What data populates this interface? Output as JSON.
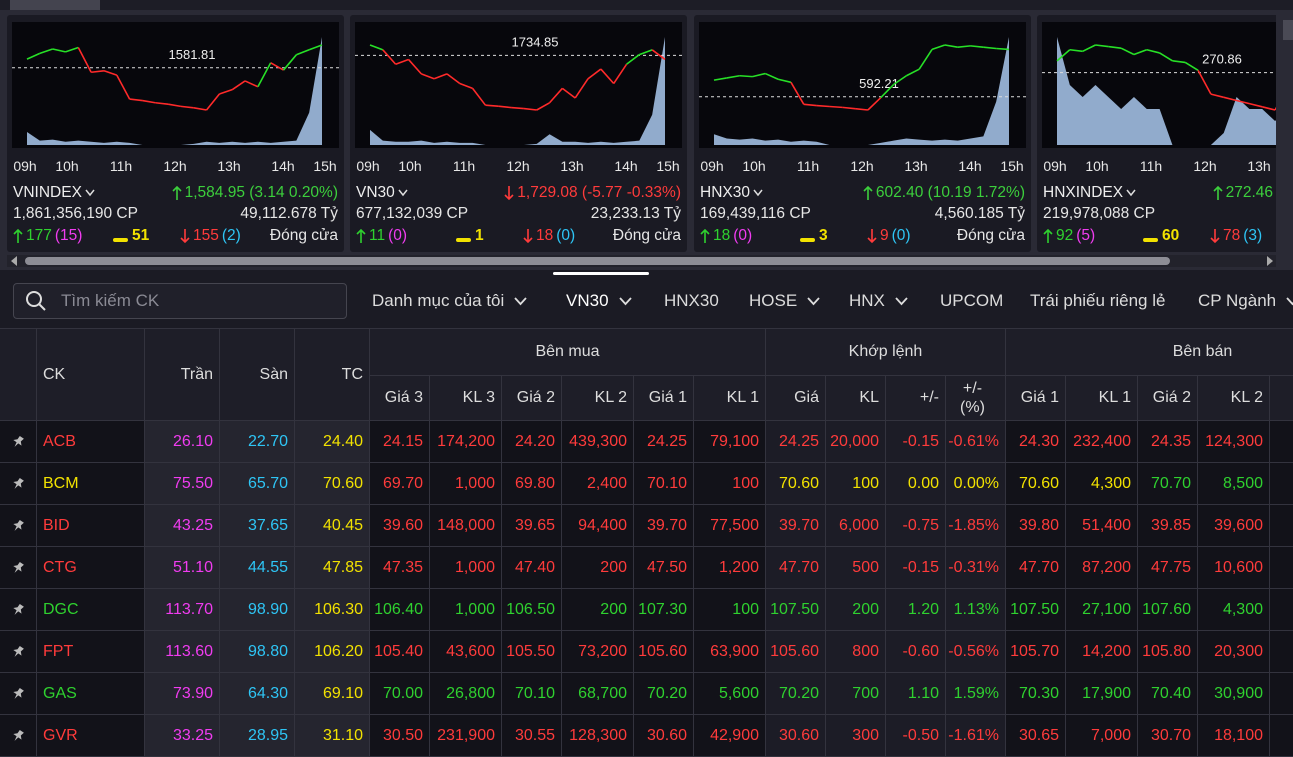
{
  "index_cards": [
    {
      "name": "VNINDEX",
      "ref": 1581.81,
      "times": [
        "09h",
        "10h",
        "11h",
        "12h",
        "13h",
        "14h",
        "15h"
      ],
      "line": [
        1583.0,
        1583.8,
        1584.4,
        1584.0,
        1584.6,
        1581.2,
        1581.4,
        1580.8,
        1577.5,
        1577.3,
        1577.0,
        1576.8,
        1576.5,
        1576.3,
        1576.0,
        1578.2,
        1578.8,
        1580.0,
        1579.2,
        1582.5,
        1581.5,
        1583.6,
        1584.3,
        1584.95
      ],
      "volume": [
        12,
        4,
        5,
        3,
        4,
        3,
        2,
        3,
        2,
        0,
        0,
        0,
        0,
        1,
        3,
        2,
        3,
        2,
        3,
        2,
        3,
        4,
        30,
        100
      ],
      "change": "1,584.95 (3.14 0.20%)",
      "change_color": "#3ccf3c",
      "volume_text": "1,861,356,190 CP",
      "value_text": "49,112.678 Tỷ",
      "advances": 177,
      "ceiling": "(15)",
      "unchanged": 51,
      "declines": 155,
      "floor": "(2)",
      "status": "Đóng cửa"
    },
    {
      "name": "VN30",
      "ref": 1734.85,
      "times": [
        "09h",
        "10h",
        "11h",
        "12h",
        "13h",
        "14h",
        "15h"
      ],
      "line": [
        1737.0,
        1736.0,
        1733.0,
        1734.0,
        1731.0,
        1730.0,
        1731.0,
        1729.0,
        1728.0,
        1724.5,
        1724.3,
        1724.0,
        1723.8,
        1723.5,
        1725.0,
        1728.0,
        1726.0,
        1730.0,
        1732.0,
        1729.0,
        1733.0,
        1735.0,
        1736.0,
        1734.0
      ],
      "volume": [
        14,
        4,
        3,
        3,
        4,
        2,
        3,
        2,
        2,
        0,
        0,
        0,
        0,
        1,
        10,
        3,
        3,
        2,
        3,
        2,
        3,
        4,
        28,
        100
      ],
      "change": "1,729.08 (-5.77 -0.33%)",
      "change_color": "#ff3b3b",
      "volume_text": "677,132,039 CP",
      "value_text": "23,233.13 Tỷ",
      "advances": 11,
      "ceiling": "(0)",
      "unchanged": 1,
      "declines": 18,
      "floor": "(0)",
      "status": "Đóng cửa"
    },
    {
      "name": "HNX30",
      "ref": 592.21,
      "times": [
        "09h",
        "10h",
        "11h",
        "12h",
        "13h",
        "14h",
        "15h"
      ],
      "line": [
        596.0,
        596.5,
        597.0,
        596.8,
        597.5,
        596.2,
        595.5,
        590.5,
        590.2,
        590.0,
        589.8,
        589.5,
        589.2,
        592.0,
        595.0,
        597.0,
        598.5,
        603.0,
        604.0,
        603.5,
        603.8,
        603.5,
        603.2,
        603.0
      ],
      "volume": [
        10,
        6,
        5,
        6,
        4,
        5,
        3,
        4,
        3,
        0,
        0,
        0,
        0,
        2,
        4,
        6,
        5,
        4,
        5,
        4,
        6,
        8,
        40,
        100
      ],
      "change": "602.40 (10.19 1.72%)",
      "change_color": "#3ccf3c",
      "volume_text": "169,439,116 CP",
      "value_text": "4,560.185 Tỷ",
      "advances": 18,
      "ceiling": "(0)",
      "unchanged": 3,
      "declines": 9,
      "floor": "(0)",
      "status": "Đóng cửa"
    },
    {
      "name": "HNXINDEX",
      "ref": 270.86,
      "times": [
        "09h",
        "10h",
        "11h",
        "12h",
        "13h"
      ],
      "line": [
        271.6,
        272.3,
        272.2,
        272.6,
        272.5,
        272.4,
        272.0,
        272.3,
        272.1,
        271.6,
        271.5,
        271.0,
        269.5,
        269.3,
        269.1,
        268.9,
        268.7,
        268.5,
        269.9,
        270.3
      ],
      "volume": [
        9,
        5,
        4,
        5,
        4,
        3,
        4,
        3,
        3,
        0,
        0,
        0,
        0,
        1,
        4,
        3,
        3,
        2,
        3,
        2
      ],
      "change": "272.46",
      "change_color": "#3ccf3c",
      "volume_text": "219,978,088 CP",
      "advances": 92,
      "ceiling": "(5)",
      "unchanged": 60,
      "declines": 78,
      "floor": "(3)"
    }
  ],
  "search_placeholder": "Tìm kiếm CK",
  "tabs": [
    {
      "label": "Danh mục của tôi",
      "dropdown": true
    },
    {
      "label": "VN30",
      "dropdown": true,
      "active": true
    },
    {
      "label": "HNX30",
      "dropdown": false
    },
    {
      "label": "HOSE",
      "dropdown": true
    },
    {
      "label": "HNX",
      "dropdown": true
    },
    {
      "label": "UPCOM",
      "dropdown": false
    },
    {
      "label": "Trái phiếu riêng lẻ",
      "dropdown": false
    },
    {
      "label": "CP Ngành",
      "dropdown": true
    }
  ],
  "table": {
    "columns": [
      "CK",
      "Trần",
      "Sàn",
      "TC"
    ],
    "groups": [
      "Bên mua",
      "Khớp lệnh",
      "Bên bán"
    ],
    "sub_columns": [
      "Giá 3",
      "KL 3",
      "Giá 2",
      "KL 2",
      "Giá 1",
      "KL 1",
      "Giá",
      "KL",
      "+/-",
      "+/-\n(%)",
      "Giá 1",
      "KL 1",
      "Giá 2",
      "KL 2"
    ],
    "rows": [
      [
        "ACB",
        "26.10",
        "22.70",
        "24.40",
        "24.15",
        "174,200",
        "24.20",
        "439,300",
        "24.25",
        "79,100",
        "24.25",
        "20,000",
        "-0.15",
        "-0.61%",
        "24.30",
        "232,400",
        "24.35",
        "124,300"
      ],
      [
        "BCM",
        "75.50",
        "65.70",
        "70.60",
        "69.70",
        "1,000",
        "69.80",
        "2,400",
        "70.10",
        "100",
        "70.60",
        "100",
        "0.00",
        "0.00%",
        "70.60",
        "4,300",
        "70.70",
        "8,500"
      ],
      [
        "BID",
        "43.25",
        "37.65",
        "40.45",
        "39.60",
        "148,000",
        "39.65",
        "94,400",
        "39.70",
        "77,500",
        "39.70",
        "6,000",
        "-0.75",
        "-1.85%",
        "39.80",
        "51,400",
        "39.85",
        "39,600"
      ],
      [
        "CTG",
        "51.10",
        "44.55",
        "47.85",
        "47.35",
        "1,000",
        "47.40",
        "200",
        "47.50",
        "1,200",
        "47.70",
        "500",
        "-0.15",
        "-0.31%",
        "47.70",
        "87,200",
        "47.75",
        "10,600"
      ],
      [
        "DGC",
        "113.70",
        "98.90",
        "106.30",
        "106.40",
        "1,000",
        "106.50",
        "200",
        "107.30",
        "100",
        "107.50",
        "200",
        "1.20",
        "1.13%",
        "107.50",
        "27,100",
        "107.60",
        "4,300"
      ],
      [
        "FPT",
        "113.60",
        "98.80",
        "106.20",
        "105.40",
        "43,600",
        "105.50",
        "73,200",
        "105.60",
        "63,900",
        "105.60",
        "800",
        "-0.60",
        "-0.56%",
        "105.70",
        "14,200",
        "105.80",
        "20,300"
      ],
      [
        "GAS",
        "73.90",
        "64.30",
        "69.10",
        "70.00",
        "26,800",
        "70.10",
        "68,700",
        "70.20",
        "5,600",
        "70.20",
        "700",
        "1.10",
        "1.59%",
        "70.30",
        "17,900",
        "70.40",
        "30,900"
      ],
      [
        "GVR",
        "33.25",
        "28.95",
        "31.10",
        "30.50",
        "231,900",
        "30.55",
        "128,300",
        "30.60",
        "42,900",
        "30.60",
        "300",
        "-0.50",
        "-1.61%",
        "30.65",
        "7,000",
        "30.70",
        "18,100"
      ]
    ]
  }
}
